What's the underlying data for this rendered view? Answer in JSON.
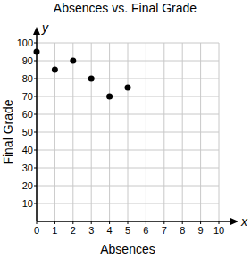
{
  "chart_data": {
    "type": "scatter",
    "title": "Absences vs. Final Grade",
    "x_label": "Absences",
    "y_label": "Final Grade",
    "x_symbol": "x",
    "y_symbol": "y",
    "x": [
      0,
      1,
      2,
      3,
      4,
      5
    ],
    "values": [
      95,
      85,
      90,
      80,
      70,
      75
    ],
    "color": "#000000",
    "marker": "circle",
    "xlim": [
      0,
      10
    ],
    "xticks": [
      0,
      1,
      2,
      3,
      4,
      5,
      6,
      7,
      8,
      9,
      10
    ],
    "ylim": [
      0,
      100
    ],
    "yticks": [
      10,
      20,
      30,
      40,
      50,
      60,
      70,
      80,
      90,
      100
    ],
    "grid": true
  }
}
